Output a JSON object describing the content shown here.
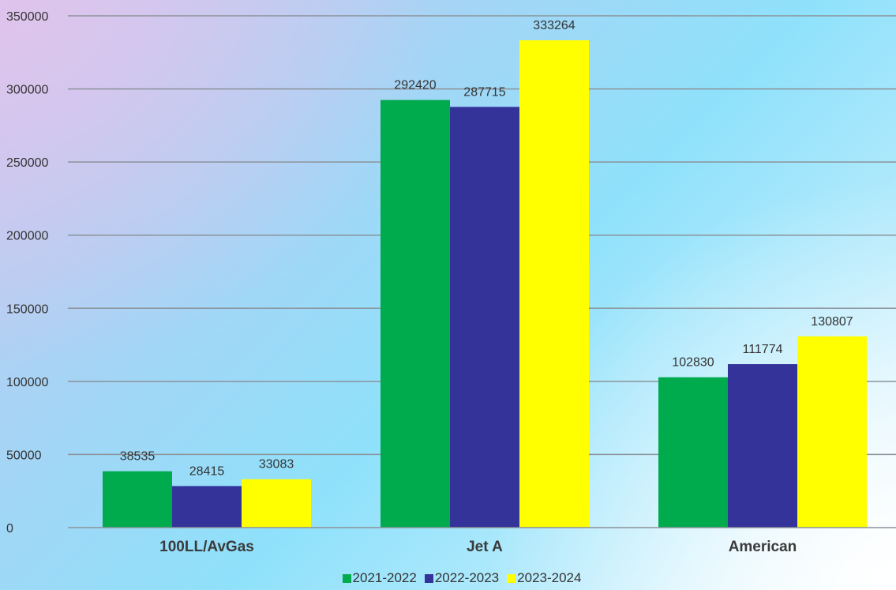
{
  "chart_data": {
    "type": "bar",
    "categories": [
      "100LL/AvGas",
      "Jet A",
      "American"
    ],
    "series": [
      {
        "name": "2021-2022",
        "color": "#00ab4e",
        "values": [
          38535,
          292420,
          102830
        ]
      },
      {
        "name": "2022-2023",
        "color": "#333399",
        "values": [
          28415,
          287715,
          111774
        ]
      },
      {
        "name": "2023-2024",
        "color": "#ffff00",
        "values": [
          33083,
          333264,
          130807
        ]
      }
    ],
    "ylim": [
      0,
      350000
    ],
    "yticks": [
      "0",
      "50000",
      "100000",
      "150000",
      "200000",
      "250000",
      "300000",
      "350000"
    ],
    "grid": true,
    "legend_position": "bottom",
    "data_labels": true
  }
}
